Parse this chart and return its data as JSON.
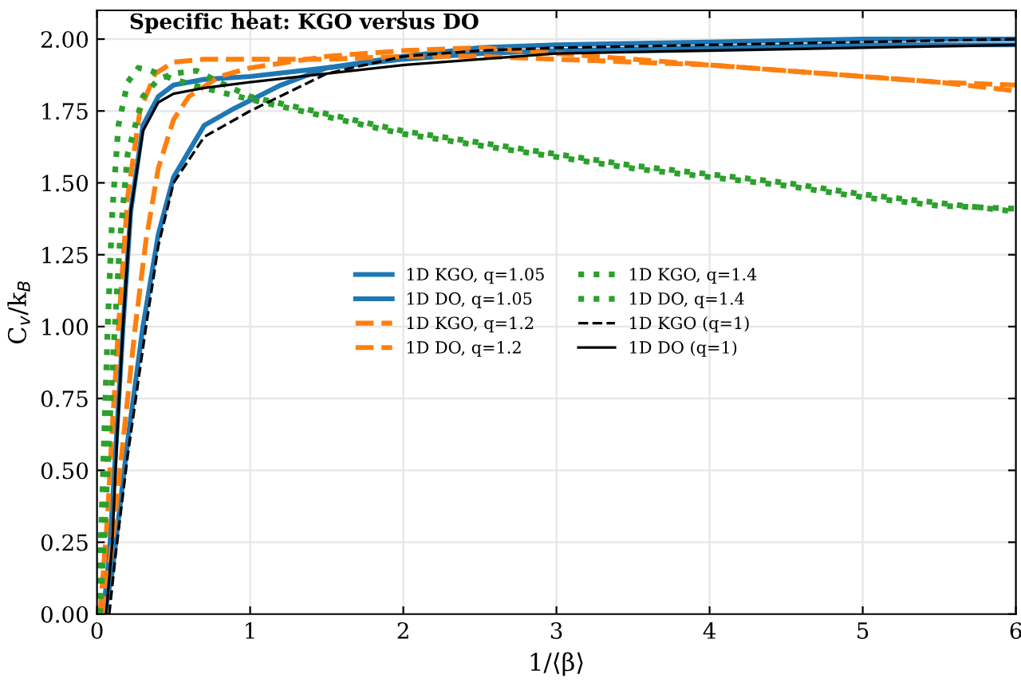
{
  "chart_data": {
    "type": "line",
    "title": "Specific heat: KGO versus DO",
    "xlabel": "1/⟨β⟩",
    "ylabel": "C$_{v}$/k$_{B}$",
    "xlim": [
      0,
      6
    ],
    "ylim": [
      0,
      2.1
    ],
    "xticks": [
      0,
      1,
      2,
      3,
      4,
      5,
      6
    ],
    "yticks": [
      {
        "value": 0,
        "label": "0.00"
      },
      {
        "value": 0.25,
        "label": "0.25"
      },
      {
        "value": 0.5,
        "label": "0.50"
      },
      {
        "value": 0.75,
        "label": "0.75"
      },
      {
        "value": 1,
        "label": "1.00"
      },
      {
        "value": 1.25,
        "label": "1.25"
      },
      {
        "value": 1.5,
        "label": "1.50"
      },
      {
        "value": 1.75,
        "label": "1.75"
      },
      {
        "value": 2,
        "label": "2.00"
      }
    ],
    "grid": true,
    "legend": "center",
    "series": [
      {
        "name": "1D KGO, q=1.05",
        "color": "#1f77b4",
        "line_style": "solid",
        "x": [
          0.05,
          0.1,
          0.2,
          0.3,
          0.4,
          0.5,
          0.7,
          0.9,
          1.2,
          1.5,
          2,
          2.5,
          3,
          4,
          5,
          6
        ],
        "values": [
          0,
          0.15,
          0.6,
          1.0,
          1.32,
          1.52,
          1.7,
          1.76,
          1.84,
          1.9,
          1.94,
          1.97,
          1.98,
          1.99,
          2.0,
          2.0
        ]
      },
      {
        "name": "1D DO, q=1.05",
        "color": "#1f77b4",
        "line_style": "solid",
        "x": [
          0.04,
          0.08,
          0.12,
          0.17,
          0.22,
          0.3,
          0.4,
          0.5,
          0.7,
          1,
          1.5,
          2,
          2.5,
          3,
          4,
          5,
          6
        ],
        "values": [
          0,
          0.2,
          0.55,
          1.0,
          1.4,
          1.7,
          1.8,
          1.84,
          1.86,
          1.87,
          1.9,
          1.93,
          1.95,
          1.96,
          1.97,
          1.98,
          1.98
        ]
      },
      {
        "name": "1D KGO, q=1.2",
        "color": "#ff7f0e",
        "line_style": "dashed",
        "x": [
          0.04,
          0.1,
          0.18,
          0.25,
          0.32,
          0.4,
          0.5,
          0.6,
          0.8,
          1,
          1.5,
          2,
          2.5,
          3,
          3.5,
          4,
          4.5,
          5,
          5.5,
          6
        ],
        "values": [
          0,
          0.25,
          0.65,
          1.0,
          1.3,
          1.55,
          1.72,
          1.8,
          1.87,
          1.9,
          1.94,
          1.96,
          1.97,
          1.95,
          1.93,
          1.91,
          1.89,
          1.87,
          1.85,
          1.82
        ]
      },
      {
        "name": "1D DO, q=1.2",
        "color": "#ff7f0e",
        "line_style": "dashed",
        "x": [
          0.02,
          0.07,
          0.1,
          0.14,
          0.2,
          0.28,
          0.38,
          0.5,
          0.7,
          1,
          1.5,
          2,
          2.5,
          3,
          3.5,
          4,
          4.5,
          5,
          5.5,
          6
        ],
        "values": [
          0,
          0.35,
          0.65,
          1.0,
          1.45,
          1.75,
          1.88,
          1.92,
          1.93,
          1.93,
          1.93,
          1.94,
          1.94,
          1.93,
          1.92,
          1.91,
          1.89,
          1.87,
          1.85,
          1.84
        ]
      },
      {
        "name": "1D KGO, q=1.4",
        "color": "#2ca02c",
        "line_style": "dotted",
        "x": [
          0.02,
          0.06,
          0.1,
          0.15,
          0.2,
          0.3,
          0.4,
          0.5,
          0.65,
          0.8,
          1,
          1.5,
          2,
          2.5,
          3,
          3.5,
          4,
          4.5,
          5,
          5.5,
          6
        ],
        "values": [
          0,
          0.4,
          0.85,
          1.3,
          1.6,
          1.8,
          1.86,
          1.88,
          1.89,
          1.85,
          1.8,
          1.74,
          1.68,
          1.64,
          1.6,
          1.56,
          1.53,
          1.5,
          1.46,
          1.43,
          1.4
        ]
      },
      {
        "name": "1D DO, q=1.4",
        "color": "#2ca02c",
        "line_style": "dotted",
        "x": [
          0.01,
          0.04,
          0.07,
          0.1,
          0.14,
          0.2,
          0.27,
          0.35,
          0.5,
          0.7,
          1,
          1.5,
          2,
          2.5,
          3,
          3.5,
          4,
          4.5,
          5,
          5.5,
          6
        ],
        "values": [
          0,
          0.5,
          1.0,
          1.4,
          1.7,
          1.85,
          1.9,
          1.89,
          1.86,
          1.83,
          1.79,
          1.73,
          1.67,
          1.63,
          1.59,
          1.55,
          1.52,
          1.49,
          1.45,
          1.42,
          1.41
        ]
      },
      {
        "name": "1D KGO (q=1)",
        "color": "#000000",
        "line_style": "dashed",
        "x": [
          0.08,
          0.12,
          0.2,
          0.32,
          0.4,
          0.5,
          0.7,
          1,
          1.5,
          2,
          2.5,
          3,
          4,
          5,
          6
        ],
        "values": [
          0,
          0.2,
          0.55,
          1.0,
          1.28,
          1.5,
          1.66,
          1.75,
          1.88,
          1.94,
          1.96,
          1.97,
          1.98,
          1.99,
          2.0
        ]
      },
      {
        "name": "1D DO (q=1)",
        "color": "#000000",
        "line_style": "solid",
        "x": [
          0.06,
          0.1,
          0.13,
          0.17,
          0.22,
          0.3,
          0.4,
          0.5,
          0.7,
          1,
          1.5,
          2,
          2.5,
          3,
          4,
          5,
          6
        ],
        "values": [
          0,
          0.25,
          0.6,
          1.0,
          1.4,
          1.68,
          1.78,
          1.81,
          1.83,
          1.85,
          1.88,
          1.91,
          1.93,
          1.95,
          1.96,
          1.97,
          1.98
        ]
      }
    ]
  }
}
